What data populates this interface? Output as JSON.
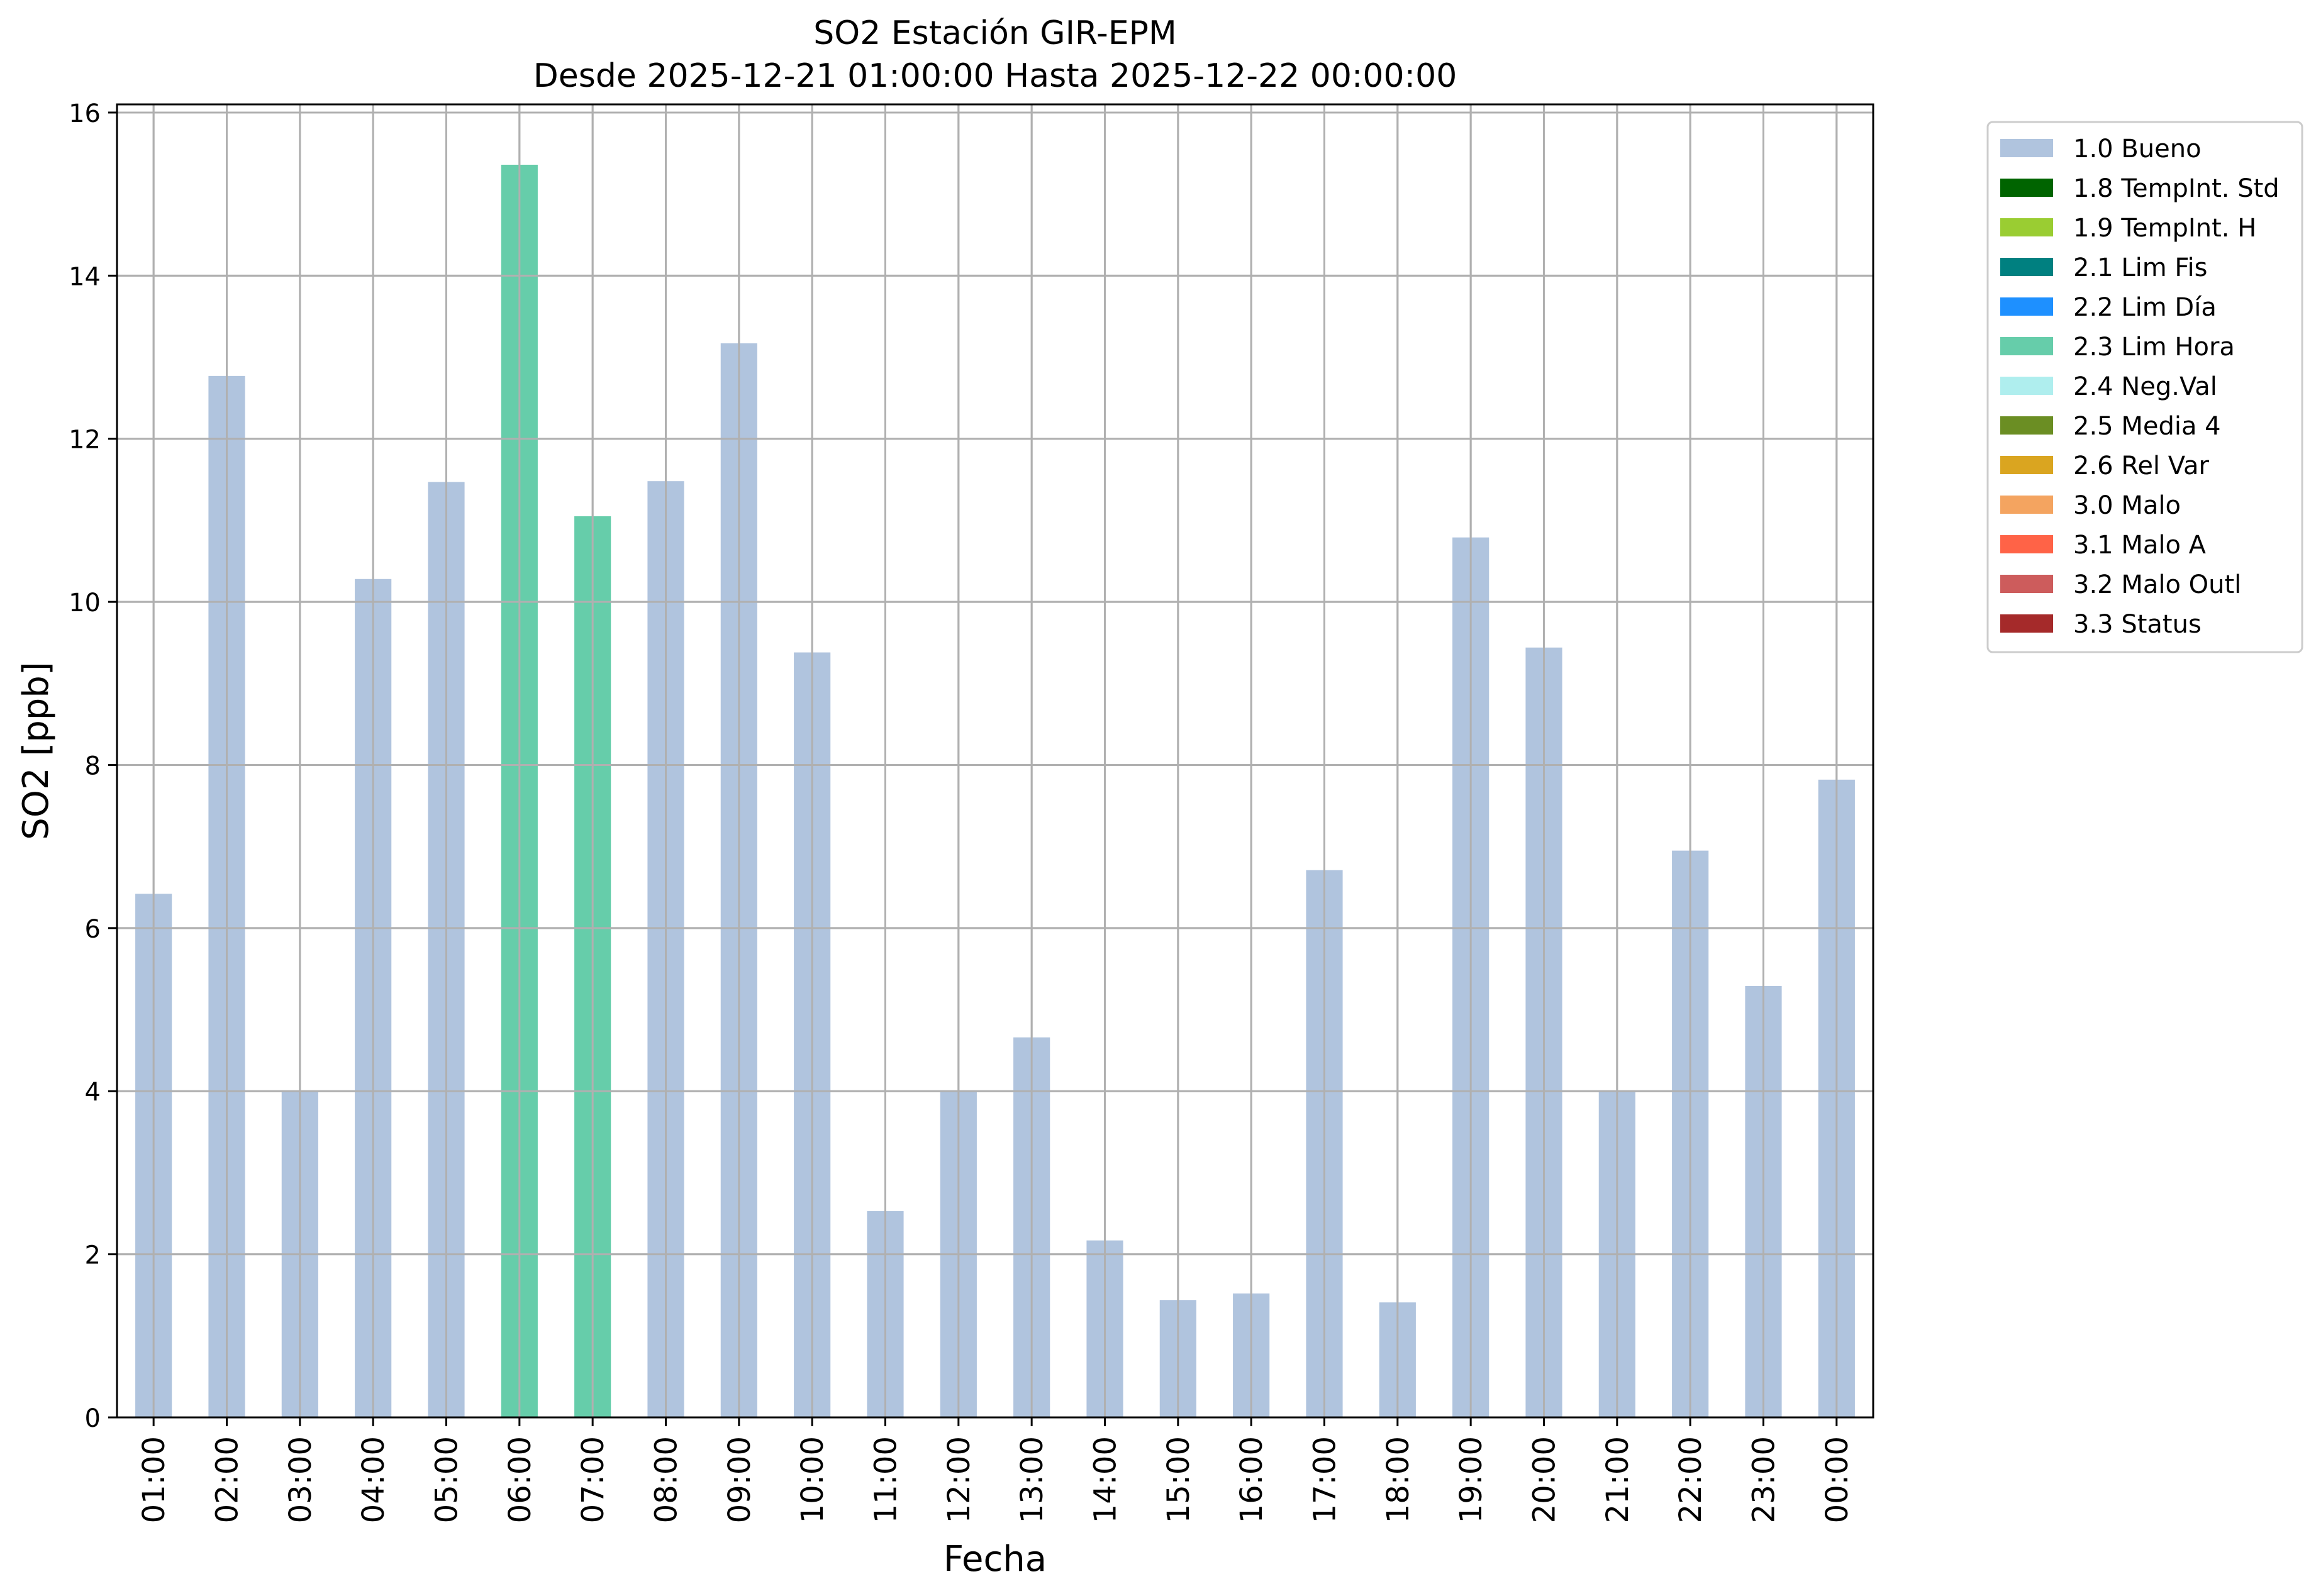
{
  "chart_data": {
    "type": "bar",
    "title": "SO2 Estación GIR-EPM",
    "subtitle": "Desde 2025-12-21 01:00:00 Hasta 2025-12-22 00:00:00",
    "xlabel": "Fecha",
    "ylabel": "SO2 [ppb]",
    "ylim": [
      0,
      16.1
    ],
    "yticks": [
      0,
      2,
      4,
      6,
      8,
      10,
      12,
      14,
      16
    ],
    "grid": true,
    "legend_position": "outside-top-right",
    "categories": [
      "01:00",
      "02:00",
      "03:00",
      "04:00",
      "05:00",
      "06:00",
      "07:00",
      "08:00",
      "09:00",
      "10:00",
      "11:00",
      "12:00",
      "13:00",
      "14:00",
      "15:00",
      "16:00",
      "17:00",
      "18:00",
      "19:00",
      "20:00",
      "21:00",
      "22:00",
      "23:00",
      "00:00"
    ],
    "values": [
      6.42,
      12.77,
      4.0,
      10.28,
      11.47,
      15.36,
      11.05,
      11.48,
      13.17,
      9.38,
      2.53,
      4.01,
      4.66,
      2.17,
      1.44,
      1.52,
      6.71,
      1.41,
      10.79,
      9.44,
      4.01,
      6.95,
      5.29,
      7.82
    ],
    "flags": [
      "1.0 Bueno",
      "1.0 Bueno",
      "1.0 Bueno",
      "1.0 Bueno",
      "1.0 Bueno",
      "2.3 Lim Hora",
      "2.3 Lim Hora",
      "1.0 Bueno",
      "1.0 Bueno",
      "1.0 Bueno",
      "1.0 Bueno",
      "1.0 Bueno",
      "1.0 Bueno",
      "1.0 Bueno",
      "1.0 Bueno",
      "1.0 Bueno",
      "1.0 Bueno",
      "1.0 Bueno",
      "1.0 Bueno",
      "1.0 Bueno",
      "1.0 Bueno",
      "1.0 Bueno",
      "1.0 Bueno",
      "1.0 Bueno"
    ],
    "legend": [
      {
        "label": "1.0 Bueno",
        "color": "#b0c4de"
      },
      {
        "label": "1.8 TempInt. Std",
        "color": "#006400"
      },
      {
        "label": "1.9 TempInt. H",
        "color": "#9acd32"
      },
      {
        "label": "2.1 Lim Fis",
        "color": "#008080"
      },
      {
        "label": "2.2 Lim Día",
        "color": "#1e90ff"
      },
      {
        "label": "2.3 Lim Hora",
        "color": "#66cdaa"
      },
      {
        "label": "2.4 Neg.Val",
        "color": "#afeeee"
      },
      {
        "label": "2.5 Media 4",
        "color": "#6b8e23"
      },
      {
        "label": "2.6 Rel Var",
        "color": "#daa520"
      },
      {
        "label": "3.0 Malo",
        "color": "#f4a460"
      },
      {
        "label": "3.1 Malo A",
        "color": "#ff6347"
      },
      {
        "label": "3.2 Malo Outl",
        "color": "#cd5c5c"
      },
      {
        "label": "3.3 Status",
        "color": "#a52a2a"
      }
    ]
  }
}
